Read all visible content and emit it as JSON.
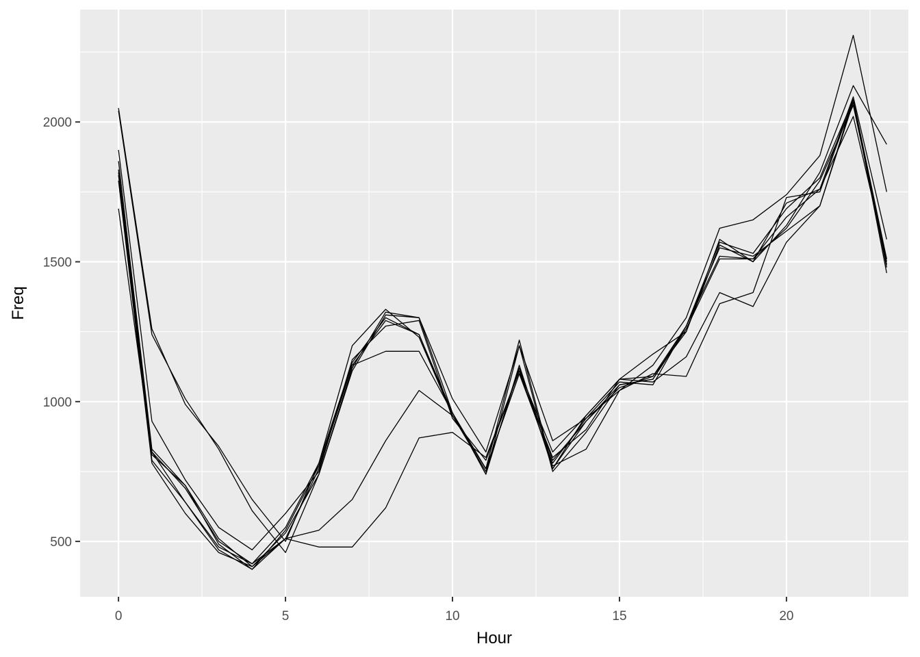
{
  "chart_data": {
    "type": "line",
    "xlabel": "Hour",
    "ylabel": "Freq",
    "xlim": [
      -1.15,
      23.65
    ],
    "ylim": [
      302,
      2402
    ],
    "x_ticks": [
      0,
      5,
      10,
      15,
      20
    ],
    "y_ticks": [
      500,
      1000,
      1500,
      2000
    ],
    "grid": true,
    "x": [
      0,
      1,
      2,
      3,
      4,
      5,
      6,
      7,
      8,
      9,
      10,
      11,
      12,
      13,
      14,
      15,
      16,
      17,
      18,
      19,
      20,
      21,
      22,
      23
    ],
    "series": [
      {
        "values": [
          2050,
          1260,
          990,
          840,
          650,
          500,
          780,
          1200,
          1330,
          1230,
          950,
          760,
          1220,
          760,
          950,
          1080,
          1090,
          1250,
          1560,
          1500,
          1630,
          1820,
          2130,
          1920
        ]
      },
      {
        "values": [
          2040,
          1240,
          1010,
          830,
          610,
          460,
          740,
          1120,
          1320,
          1300,
          1010,
          820,
          1200,
          860,
          940,
          1040,
          1130,
          1300,
          1620,
          1650,
          1740,
          1880,
          2310,
          1750
        ]
      },
      {
        "values": [
          1900,
          930,
          720,
          550,
          470,
          600,
          750,
          1150,
          1270,
          1290,
          940,
          790,
          1110,
          820,
          950,
          1080,
          1170,
          1250,
          1580,
          1500,
          1710,
          1760,
          2090,
          1580
        ]
      },
      {
        "values": [
          1860,
          830,
          700,
          510,
          410,
          530,
          740,
          1110,
          1310,
          1300,
          960,
          760,
          1100,
          780,
          940,
          1070,
          1060,
          1270,
          1570,
          1530,
          1690,
          1800,
          2080,
          1510
        ]
      },
      {
        "values": [
          1830,
          820,
          690,
          500,
          420,
          550,
          780,
          1140,
          1300,
          1240,
          960,
          740,
          1130,
          760,
          930,
          1060,
          1080,
          1260,
          1510,
          1510,
          1620,
          1790,
          2060,
          1500
        ]
      },
      {
        "values": [
          1810,
          810,
          700,
          490,
          400,
          540,
          770,
          1130,
          1290,
          1240,
          950,
          750,
          1120,
          790,
          930,
          1050,
          1090,
          1270,
          1550,
          1520,
          1610,
          1700,
          2070,
          1490
        ]
      },
      {
        "values": [
          1820,
          790,
          640,
          470,
          400,
          510,
          760,
          1130,
          1180,
          1180,
          960,
          740,
          1200,
          750,
          890,
          1060,
          1080,
          1270,
          1520,
          1510,
          1660,
          1760,
          2020,
          1510
        ]
      },
      {
        "values": [
          1790,
          780,
          600,
          460,
          410,
          510,
          540,
          650,
          860,
          1040,
          950,
          760,
          1100,
          800,
          900,
          1080,
          1070,
          1160,
          1390,
          1340,
          1570,
          1700,
          2080,
          1480
        ]
      },
      {
        "values": [
          1690,
          820,
          640,
          480,
          420,
          510,
          480,
          480,
          620,
          870,
          890,
          800,
          1110,
          770,
          830,
          1040,
          1100,
          1090,
          1350,
          1390,
          1730,
          1750,
          2080,
          1460
        ]
      }
    ]
  }
}
